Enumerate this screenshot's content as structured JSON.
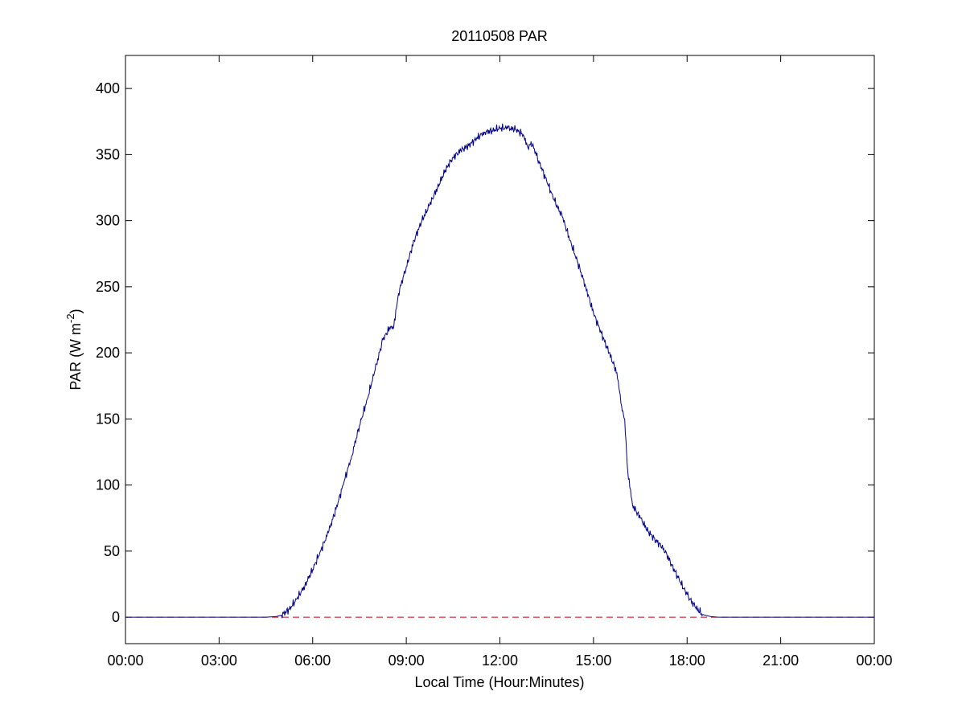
{
  "chart_data": {
    "type": "line",
    "title": "20110508 PAR",
    "xlabel": "Local Time (Hour:Minutes)",
    "ylabel": {
      "main": "PAR (W m",
      "sup": "-2",
      "close": ")"
    },
    "xlim": [
      0,
      24
    ],
    "ylim": [
      -20,
      425
    ],
    "xticks": [
      {
        "value": 0,
        "label": "00:00"
      },
      {
        "value": 3,
        "label": "03:00"
      },
      {
        "value": 6,
        "label": "06:00"
      },
      {
        "value": 9,
        "label": "09:00"
      },
      {
        "value": 12,
        "label": "12:00"
      },
      {
        "value": 15,
        "label": "15:00"
      },
      {
        "value": 18,
        "label": "18:00"
      },
      {
        "value": 21,
        "label": "21:00"
      },
      {
        "value": 24,
        "label": "00:00"
      }
    ],
    "yticks": [
      {
        "value": 0,
        "label": "0"
      },
      {
        "value": 50,
        "label": "50"
      },
      {
        "value": 100,
        "label": "100"
      },
      {
        "value": 150,
        "label": "150"
      },
      {
        "value": 200,
        "label": "200"
      },
      {
        "value": 250,
        "label": "250"
      },
      {
        "value": 300,
        "label": "300"
      },
      {
        "value": 350,
        "label": "350"
      },
      {
        "value": 400,
        "label": "400"
      }
    ],
    "grid": false,
    "series": [
      {
        "color": "#00008b",
        "style": "solid",
        "x": [
          0,
          4.5,
          4.83,
          5.0,
          5.25,
          5.5,
          5.75,
          6.0,
          6.25,
          6.5,
          6.75,
          7.0,
          7.25,
          7.5,
          7.75,
          8.0,
          8.25,
          8.5,
          8.6,
          8.75,
          9.0,
          9.25,
          9.5,
          9.75,
          10.0,
          10.25,
          10.5,
          10.75,
          11.0,
          11.25,
          11.5,
          11.75,
          12.0,
          12.25,
          12.5,
          12.75,
          12.9,
          13.0,
          13.25,
          13.5,
          13.75,
          14.0,
          14.25,
          14.5,
          14.75,
          15.0,
          15.25,
          15.5,
          15.75,
          15.9,
          16.0,
          16.1,
          16.25,
          16.5,
          16.75,
          17.0,
          17.25,
          17.5,
          17.75,
          18.0,
          18.25,
          18.5,
          18.75,
          19.0,
          19.25,
          24
        ],
        "y": [
          0,
          0,
          0.5,
          1.5,
          6,
          14,
          24,
          36,
          50,
          64,
          82,
          102,
          122,
          145,
          165,
          187,
          210,
          220,
          220,
          245,
          265,
          285,
          300,
          312,
          325,
          338,
          348,
          353,
          357,
          362,
          367,
          368,
          370,
          370,
          369,
          365,
          355,
          360,
          345,
          330,
          315,
          303,
          285,
          268,
          250,
          230,
          215,
          200,
          185,
          160,
          150,
          110,
          85,
          75,
          65,
          58,
          52,
          40,
          28,
          17,
          8,
          2,
          0.5,
          0,
          0,
          0
        ]
      },
      {
        "color": "#cc0000",
        "style": "dashed",
        "x": [
          0,
          24
        ],
        "y": [
          0,
          0
        ]
      }
    ]
  }
}
